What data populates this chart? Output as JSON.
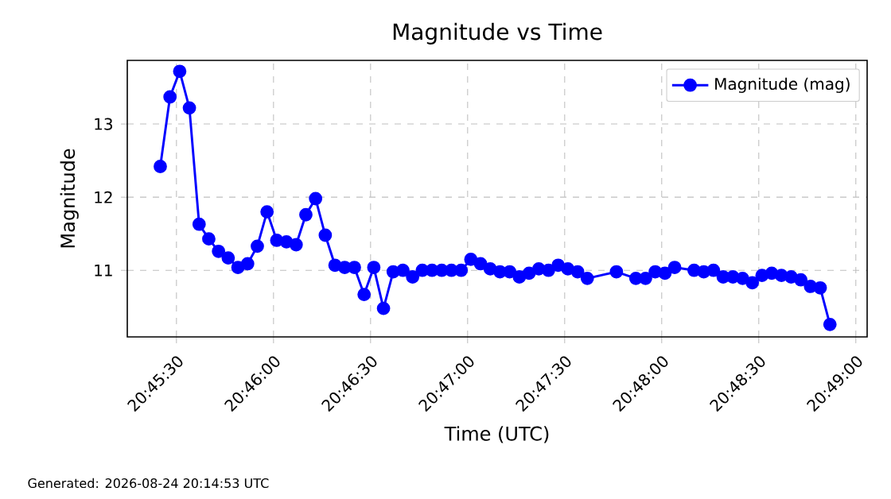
{
  "chart_data": {
    "type": "line",
    "title": "Magnitude vs Time",
    "xlabel": "Time (UTC)",
    "ylabel": "Magnitude",
    "annotations": [
      "Generated: 2026-08-24 20:14:53 UTC"
    ],
    "x": [
      20.756944,
      20.757778,
      20.758611,
      20.759444,
      20.760278,
      20.761111,
      20.761944,
      20.762778,
      20.763611,
      20.764444,
      20.765278,
      20.766111,
      20.766944,
      20.767778,
      20.768611,
      20.769444,
      20.770278,
      20.771111,
      20.771944,
      20.772778,
      20.773611,
      20.774444,
      20.775278,
      20.776111,
      20.776944,
      20.777778,
      20.778611,
      20.779444,
      20.780278,
      20.781111,
      20.781944,
      20.782778,
      20.783611,
      20.784444,
      20.785278,
      20.786111,
      20.786944,
      20.787778,
      20.788611,
      20.789444,
      20.790278,
      20.791111,
      20.791944,
      20.792778,
      20.793611,
      20.796111,
      20.797778,
      20.798611,
      20.799444,
      20.800278,
      20.801111,
      20.802778,
      20.803611,
      20.804444,
      20.805278,
      20.806111,
      20.806944,
      20.807778,
      20.808611,
      20.809444,
      20.810278,
      20.811111,
      20.811944,
      20.812778,
      20.813611,
      20.814444
    ],
    "series": [
      {
        "name": "Magnitude (mag)",
        "color": "#0000ff",
        "values": [
          12.42,
          13.37,
          13.72,
          13.22,
          11.63,
          11.43,
          11.26,
          11.17,
          11.04,
          11.09,
          11.33,
          11.8,
          11.41,
          11.39,
          11.35,
          11.76,
          11.98,
          11.48,
          11.07,
          11.04,
          11.04,
          10.67,
          11.04,
          10.48,
          10.98,
          11.0,
          10.91,
          11.0,
          11.0,
          11.0,
          11.0,
          11.0,
          11.15,
          11.09,
          11.02,
          10.98,
          10.98,
          10.91,
          10.96,
          11.02,
          11.0,
          11.07,
          11.02,
          10.98,
          10.89,
          10.98,
          10.89,
          10.89,
          10.98,
          10.96,
          11.04,
          11.0,
          10.98,
          11.0,
          10.91,
          10.91,
          10.89,
          10.83,
          10.93,
          10.96,
          10.93,
          10.91,
          10.87,
          10.78,
          10.76,
          10.26
        ]
      }
    ],
    "xlim": [
      20.754111,
      20.817639
    ],
    "ylim": [
      10.09,
      13.87
    ],
    "xticks": [
      {
        "value": 20.758333,
        "label": "20:45:30"
      },
      {
        "value": 20.766667,
        "label": "20:46:00"
      },
      {
        "value": 20.775,
        "label": "20:46:30"
      },
      {
        "value": 20.783333,
        "label": "20:47:00"
      },
      {
        "value": 20.791667,
        "label": "20:47:30"
      },
      {
        "value": 20.8,
        "label": "20:48:00"
      },
      {
        "value": 20.808333,
        "label": "20:48:30"
      },
      {
        "value": 20.816667,
        "label": "20:49:00"
      }
    ],
    "yticks": [
      11,
      12,
      13
    ],
    "grid": true,
    "legend": "top right",
    "marker": "circle",
    "line_style": "solid"
  }
}
